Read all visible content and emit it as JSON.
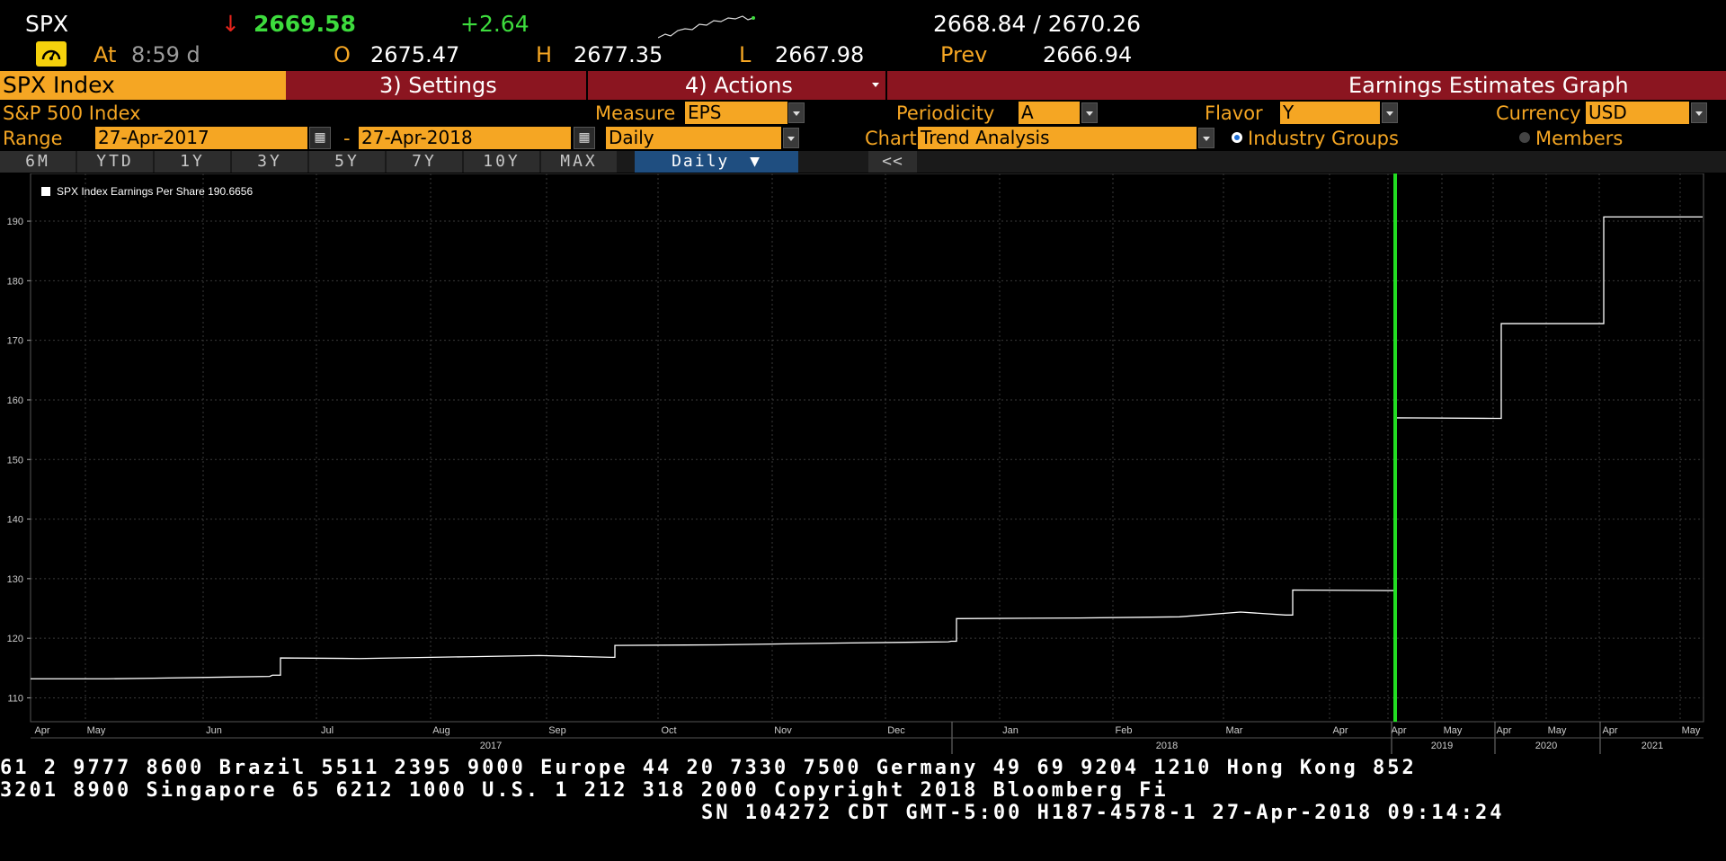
{
  "quote": {
    "ticker": "SPX",
    "arrow": "↓",
    "last": "2669.58",
    "change": "+2.64",
    "bid_ask": "2668.84 / 2670.26",
    "at_label": "At",
    "time": "8:59 d",
    "open_label": "O",
    "open": "2675.47",
    "high_label": "H",
    "high": "2677.35",
    "low_label": "L",
    "low": "2667.98",
    "prev_label": "Prev",
    "prev": "2666.94"
  },
  "menu": {
    "ticker_tab": "SPX Index",
    "settings": "3) Settings",
    "actions": "4) Actions",
    "title": "Earnings Estimates Graph"
  },
  "params": {
    "security": "S&P 500 Index",
    "measure_label": "Measure",
    "measure": "EPS",
    "periodicity_label": "Periodicity",
    "periodicity": "A",
    "flavor_label": "Flavor",
    "flavor": "Y",
    "currency_label": "Currency",
    "currency": "USD",
    "range_label": "Range",
    "range_start": "27-Apr-2017",
    "range_dash": "-",
    "range_end": "27-Apr-2018",
    "frequency": "Daily",
    "chart_label": "Chart",
    "chart_type": "Trend Analysis",
    "industry_groups": "Industry Groups",
    "members": "Members"
  },
  "periods": [
    "6M",
    "YTD",
    "1Y",
    "3Y",
    "5Y",
    "7Y",
    "10Y",
    "MAX"
  ],
  "period_active": "Daily",
  "period_active_arrow": "▼",
  "collapse": "<<",
  "colors": {
    "accent": "#f5a623",
    "menu_bar": "#8b1520",
    "positive": "#3ddc3d",
    "negative": "#e8241c",
    "today_marker": "#22dd22",
    "line": "#ffffff"
  },
  "chart_data": {
    "type": "line",
    "legend": "SPX Index Earnings Per Share 190.6656",
    "ylim": [
      106,
      198
    ],
    "yticks": [
      110,
      120,
      130,
      140,
      150,
      160,
      170,
      180,
      190
    ],
    "grid": true,
    "x_month_labels": [
      "Apr",
      "May",
      "Jun",
      "Jul",
      "Aug",
      "Sep",
      "Oct",
      "Nov",
      "Dec",
      "Jan",
      "Feb",
      "Mar",
      "Apr",
      "Apr",
      "May",
      "Apr",
      "May",
      "Apr",
      "May"
    ],
    "x_year_labels": [
      "2017",
      "2018",
      "2019",
      "2020",
      "2021"
    ],
    "series": [
      {
        "values": [
          113.2,
          113.2,
          113.3,
          113.6,
          113.8,
          116.7,
          116.6,
          116.9,
          117.1,
          116.8,
          118.8,
          118.9,
          119.2,
          119.4,
          119.5,
          123.3,
          123.4,
          123.6,
          124.4,
          123.9,
          128.1,
          128.0,
          157.0,
          156.9,
          172.8,
          172.8,
          190.7,
          190.7
        ]
      }
    ]
  },
  "footer": {
    "line1": "61 2 9777 8600 Brazil 5511 2395 9000 Europe 44 20 7330 7500 Germany 49 69 9204 1210 Hong Kong 852",
    "line2": " 3201 8900       Singapore 65 6212 1000       U.S. 1 212 318 2000       Copyright 2018 Bloomberg Fi",
    "line3": "SN 104272 CDT  GMT-5:00 H187-4578-1 27-Apr-2018 09:14:24"
  }
}
